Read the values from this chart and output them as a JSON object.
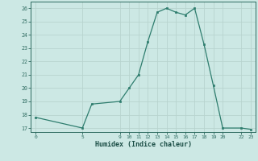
{
  "x": [
    0,
    5,
    6,
    9,
    10,
    11,
    12,
    13,
    14,
    15,
    16,
    17,
    18,
    19,
    20,
    22,
    23
  ],
  "y": [
    17.8,
    17.0,
    18.8,
    19.0,
    20.0,
    21.0,
    23.5,
    25.7,
    26.0,
    25.7,
    25.5,
    26.0,
    23.3,
    20.2,
    17.0,
    17.0,
    16.9
  ],
  "xticks": [
    0,
    5,
    9,
    10,
    11,
    12,
    13,
    14,
    15,
    16,
    17,
    18,
    19,
    20,
    22,
    23
  ],
  "yticks": [
    17,
    18,
    19,
    20,
    21,
    22,
    23,
    24,
    25,
    26
  ],
  "xlabel": "Humidex (Indice chaleur)",
  "xlim": [
    -0.5,
    23.5
  ],
  "ylim": [
    16.7,
    26.5
  ],
  "line_color": "#2e7d6e",
  "bg_color": "#cce8e4",
  "grid_color": "#b8d4cf",
  "tick_color": "#2e6b60",
  "font_color": "#1a4d45"
}
